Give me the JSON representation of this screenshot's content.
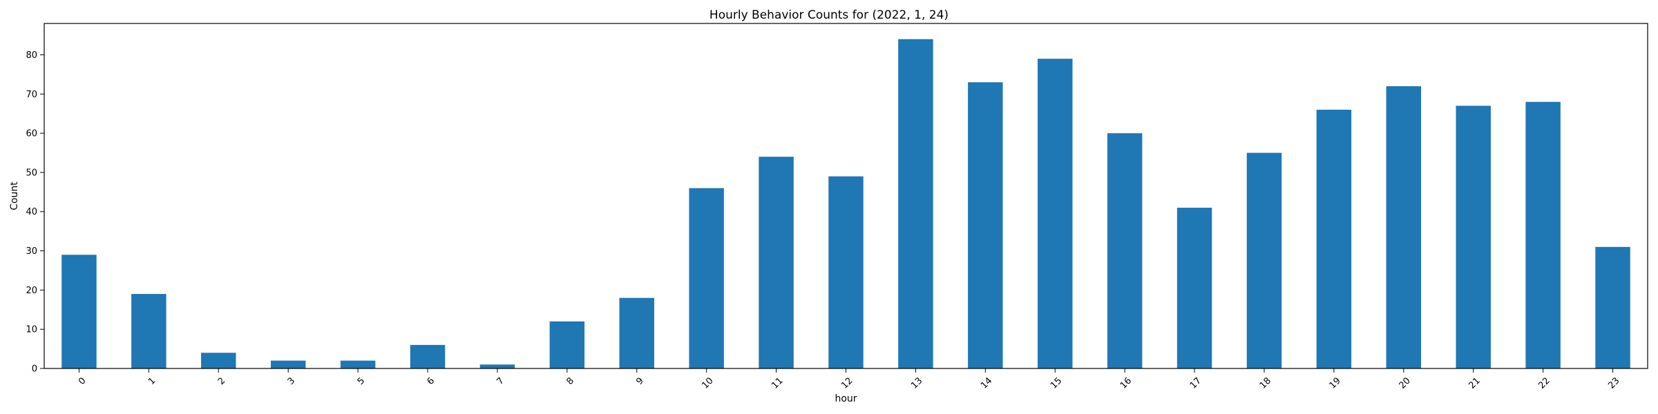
{
  "chart_data": {
    "type": "bar",
    "title": "Hourly Behavior Counts for (2022, 1, 24)",
    "xlabel": "hour",
    "ylabel": "Count",
    "categories": [
      "0",
      "1",
      "2",
      "3",
      "5",
      "6",
      "7",
      "8",
      "9",
      "10",
      "11",
      "12",
      "13",
      "14",
      "15",
      "16",
      "17",
      "18",
      "19",
      "20",
      "21",
      "22",
      "23"
    ],
    "values": [
      29,
      19,
      4,
      2,
      2,
      6,
      1,
      12,
      18,
      46,
      54,
      49,
      84,
      73,
      79,
      60,
      41,
      55,
      66,
      72,
      67,
      68,
      31
    ],
    "ylim": [
      0,
      88
    ],
    "yticks": [
      0,
      10,
      20,
      30,
      40,
      50,
      60,
      70,
      80
    ],
    "grid": false,
    "legend": "none",
    "bar_color": "#1f77b4"
  }
}
